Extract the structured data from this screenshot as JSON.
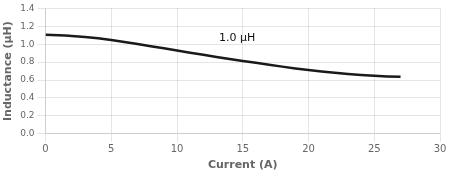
{
  "chart_data": {
    "type": "line",
    "xlabel": "Current (A)",
    "ylabel": "Inductance (μH)",
    "x": [
      0,
      0.5,
      1,
      1.5,
      2,
      3,
      4,
      5,
      6,
      7,
      8,
      9,
      10,
      11,
      12,
      13,
      14,
      15,
      16,
      17,
      18,
      19,
      20,
      21,
      22,
      23,
      24,
      25,
      26,
      27
    ],
    "values": [
      1.105,
      1.103,
      1.1,
      1.097,
      1.092,
      1.082,
      1.067,
      1.048,
      1.025,
      1.002,
      0.978,
      0.954,
      0.93,
      0.906,
      0.882,
      0.858,
      0.836,
      0.814,
      0.792,
      0.77,
      0.75,
      0.73,
      0.712,
      0.696,
      0.681,
      0.668,
      0.657,
      0.648,
      0.641,
      0.636
    ],
    "color": "#1a1a1a",
    "xlim": [
      0,
      30
    ],
    "ylim": [
      0,
      1.4
    ],
    "xticks": [
      0,
      5,
      10,
      15,
      20,
      25,
      30
    ],
    "yticks": [
      {
        "value": 0,
        "label": "0.0"
      },
      0.2,
      0.4,
      0.6,
      0.8,
      {
        "value": 1.0,
        "label": "1.0"
      },
      1.2,
      1.4
    ],
    "grid": true,
    "annotations": [
      {
        "text": "1.0 μH",
        "x": 13.2,
        "y": 1.01
      }
    ]
  }
}
